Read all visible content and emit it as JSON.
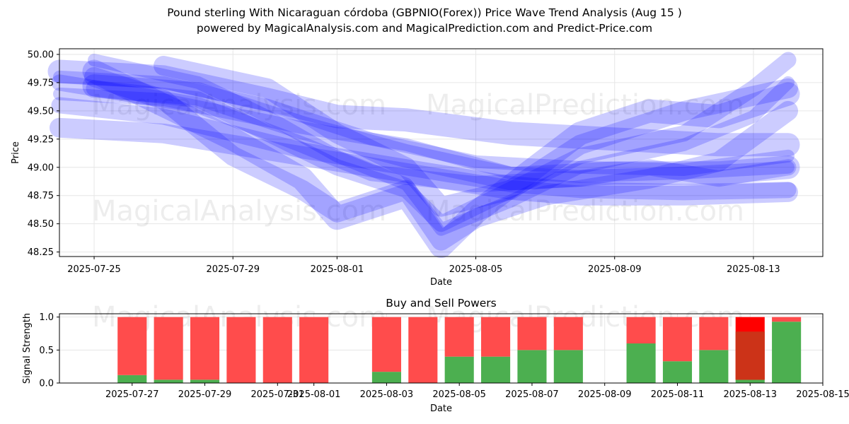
{
  "titles": {
    "line1": "Pound sterling With Nicaraguan córdoba (GBPNIO(Forex)) Price Wave Trend Analysis (Aug 15 )",
    "line2": "powered by MagicalAnalysis.com and MagicalPrediction.com and Predict-Price.com"
  },
  "watermarks": [
    "MagicalAnalysis.com",
    "MagicalPrediction.com"
  ],
  "colors": {
    "wave": "#0000ff",
    "buy": "#4caf50",
    "sell": "#ff4c4c",
    "sell_strong": "#ff0000",
    "overlap": "#cc3318"
  },
  "chart_data": [
    {
      "type": "line",
      "title": "",
      "xlabel": "Date",
      "ylabel": "Price",
      "grid": true,
      "xlim": [
        "2025-07-24",
        "2025-08-15"
      ],
      "ylim": [
        48.21,
        50.05
      ],
      "xticks": [
        "2025-07-25",
        "2025-07-29",
        "2025-08-01",
        "2025-08-05",
        "2025-08-09",
        "2025-08-13"
      ],
      "yticks": [
        "48.25",
        "48.50",
        "48.75",
        "49.00",
        "49.25",
        "49.50",
        "49.75",
        "50.00"
      ],
      "series": [
        {
          "x": [
            "2025-07-24",
            "2025-07-27",
            "2025-07-31",
            "2025-08-03",
            "2025-08-06",
            "2025-08-08",
            "2025-08-11",
            "2025-08-14"
          ],
          "values": [
            49.65,
            49.6,
            49.35,
            49.2,
            48.95,
            48.92,
            48.95,
            49.0
          ]
        },
        {
          "x": [
            "2025-07-24",
            "2025-07-27",
            "2025-07-31",
            "2025-08-03",
            "2025-08-06",
            "2025-08-08",
            "2025-08-11",
            "2025-08-14"
          ],
          "values": [
            49.55,
            49.45,
            49.15,
            49.0,
            48.85,
            48.8,
            48.78,
            48.8
          ]
        },
        {
          "x": [
            "2025-07-24",
            "2025-07-27",
            "2025-07-31",
            "2025-08-03",
            "2025-08-06",
            "2025-08-08",
            "2025-08-11",
            "2025-08-14"
          ],
          "values": [
            49.35,
            49.3,
            49.1,
            48.95,
            48.8,
            48.75,
            48.75,
            48.78
          ]
        },
        {
          "x": [
            "2025-07-24",
            "2025-07-27",
            "2025-07-30",
            "2025-08-01",
            "2025-08-03",
            "2025-08-06",
            "2025-08-09",
            "2025-08-12",
            "2025-08-14"
          ],
          "values": [
            49.85,
            49.8,
            49.6,
            49.45,
            49.42,
            49.3,
            49.25,
            49.2,
            49.2
          ]
        },
        {
          "x": [
            "2025-07-24",
            "2025-07-27",
            "2025-07-30",
            "2025-08-02",
            "2025-08-05",
            "2025-08-08",
            "2025-08-11",
            "2025-08-14"
          ],
          "values": [
            49.8,
            49.75,
            49.55,
            49.25,
            49.05,
            49.0,
            48.98,
            49.1
          ]
        },
        {
          "x": [
            "2025-07-24",
            "2025-07-28",
            "2025-07-31",
            "2025-08-02",
            "2025-08-05",
            "2025-08-08",
            "2025-08-10",
            "2025-08-12",
            "2025-08-14"
          ],
          "values": [
            49.75,
            49.55,
            49.2,
            48.95,
            48.85,
            48.9,
            49.0,
            48.9,
            49.0
          ]
        },
        {
          "x": [
            "2025-07-25",
            "2025-07-27",
            "2025-07-29",
            "2025-07-31",
            "2025-08-01",
            "2025-08-03",
            "2025-08-04",
            "2025-08-05",
            "2025-08-07",
            "2025-08-10",
            "2025-08-12",
            "2025-08-14"
          ],
          "values": [
            49.8,
            49.6,
            49.1,
            48.8,
            48.6,
            48.8,
            48.35,
            48.55,
            48.75,
            48.9,
            49.05,
            49.5
          ]
        },
        {
          "x": [
            "2025-07-25",
            "2025-07-27",
            "2025-07-29",
            "2025-07-31",
            "2025-08-01",
            "2025-08-03",
            "2025-08-04",
            "2025-08-05",
            "2025-08-08",
            "2025-08-10",
            "2025-08-12",
            "2025-08-14"
          ],
          "values": [
            49.85,
            49.55,
            49.25,
            48.9,
            48.55,
            48.75,
            48.3,
            48.6,
            49.3,
            49.5,
            49.45,
            49.65
          ]
        },
        {
          "x": [
            "2025-07-25",
            "2025-07-28",
            "2025-07-30",
            "2025-08-01",
            "2025-08-03",
            "2025-08-04",
            "2025-08-06",
            "2025-08-08",
            "2025-08-11",
            "2025-08-13",
            "2025-08-14"
          ],
          "values": [
            49.95,
            49.75,
            49.45,
            49.1,
            48.85,
            48.45,
            48.7,
            49.0,
            49.2,
            49.45,
            49.75
          ]
        },
        {
          "x": [
            "2025-07-25",
            "2025-07-28",
            "2025-07-30",
            "2025-08-01",
            "2025-08-03",
            "2025-08-04",
            "2025-08-06",
            "2025-08-08",
            "2025-08-11",
            "2025-08-13",
            "2025-08-14"
          ],
          "values": [
            49.7,
            49.6,
            49.3,
            49.0,
            48.8,
            48.5,
            48.8,
            49.1,
            49.3,
            49.7,
            49.95
          ]
        },
        {
          "x": [
            "2025-07-27",
            "2025-07-30",
            "2025-08-01",
            "2025-08-03",
            "2025-08-04",
            "2025-08-06",
            "2025-08-08",
            "2025-08-11",
            "2025-08-14"
          ],
          "values": [
            49.9,
            49.7,
            49.3,
            49.0,
            48.65,
            48.8,
            49.2,
            49.5,
            49.7
          ]
        },
        {
          "x": [
            "2025-07-25",
            "2025-07-28",
            "2025-07-31",
            "2025-08-03",
            "2025-08-06",
            "2025-08-09",
            "2025-08-12",
            "2025-08-14"
          ],
          "values": [
            49.72,
            49.65,
            49.35,
            49.1,
            48.9,
            48.95,
            48.95,
            49.0
          ]
        }
      ]
    },
    {
      "type": "bar",
      "title": "Buy and Sell Powers",
      "xlabel": "Date",
      "ylabel": "Signal Strength",
      "grid": true,
      "xlim": [
        "2025-07-25",
        "2025-08-15"
      ],
      "ylim": [
        0,
        1.05
      ],
      "xticks": [
        "2025-07-27",
        "2025-07-29",
        "2025-07-31",
        "2025-08-01",
        "2025-08-03",
        "2025-08-05",
        "2025-08-07",
        "2025-08-09",
        "2025-08-11",
        "2025-08-13",
        "2025-08-15"
      ],
      "yticks": [
        "0.0",
        "0.5",
        "1.0"
      ],
      "categories": [
        "2025-07-27",
        "2025-07-28",
        "2025-07-29",
        "2025-07-30",
        "2025-07-31",
        "2025-08-01",
        "2025-08-03",
        "2025-08-04",
        "2025-08-05",
        "2025-08-06",
        "2025-08-07",
        "2025-08-08",
        "2025-08-10",
        "2025-08-11",
        "2025-08-12",
        "2025-08-13",
        "2025-08-14"
      ],
      "series": [
        {
          "name": "Buy",
          "values": [
            0.12,
            0.05,
            0.05,
            0.0,
            0.0,
            0.0,
            0.17,
            0.0,
            0.4,
            0.4,
            0.5,
            0.5,
            0.6,
            0.33,
            0.5,
            0.05,
            0.93
          ]
        },
        {
          "name": "Sell",
          "values": [
            0.88,
            0.95,
            0.95,
            1.0,
            1.0,
            1.0,
            0.83,
            1.0,
            0.6,
            0.6,
            0.5,
            0.5,
            0.4,
            0.67,
            0.5,
            0.95,
            0.07
          ]
        }
      ],
      "overlay": {
        "date": "2025-08-13",
        "from": 0.05,
        "to": 0.78
      }
    }
  ]
}
